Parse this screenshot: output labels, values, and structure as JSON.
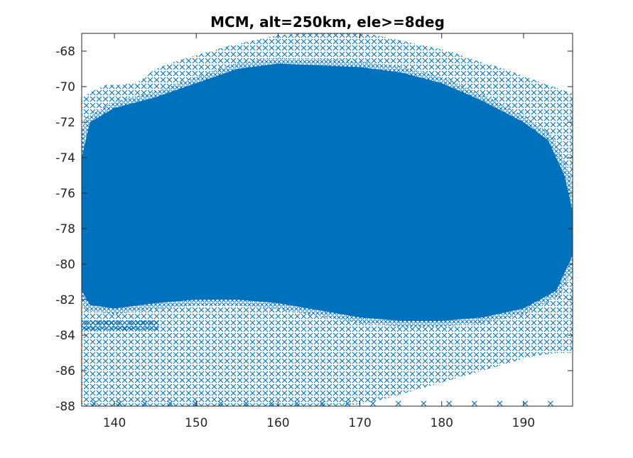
{
  "chart_data": {
    "type": "scatter",
    "title": "MCM, alt=250km, ele>=8deg",
    "xlabel": "",
    "ylabel": "",
    "xlim": [
      136,
      196
    ],
    "ylim": [
      -88,
      -67
    ],
    "xticks": [
      140,
      150,
      160,
      170,
      180,
      190
    ],
    "xtick_labels": [
      "140",
      "150",
      "160",
      "170",
      "180",
      "190"
    ],
    "yticks": [
      -88,
      -86,
      -84,
      -82,
      -80,
      -78,
      -76,
      -74,
      -72,
      -70,
      -68
    ],
    "ytick_labels": [
      "-88",
      "-86",
      "-84",
      "-82",
      "-80",
      "-78",
      "-76",
      "-74",
      "-72",
      "-70",
      "-68"
    ],
    "marker": "x",
    "grid": false,
    "legend": "none",
    "series_color": "#0072bd",
    "coverage_polygon": [
      [
        136,
        -70.6
      ],
      [
        137.5,
        -70.2
      ],
      [
        139,
        -69.9
      ],
      [
        141,
        -69.9
      ],
      [
        143,
        -69.7
      ],
      [
        145,
        -69.0
      ],
      [
        148,
        -68.5
      ],
      [
        151,
        -68.1
      ],
      [
        154,
        -67.7
      ],
      [
        157,
        -67.4
      ],
      [
        160,
        -67.1
      ],
      [
        163,
        -67.0
      ],
      [
        166,
        -67.0
      ],
      [
        169,
        -67.0
      ],
      [
        172,
        -67.1
      ],
      [
        175,
        -67.4
      ],
      [
        178,
        -67.7
      ],
      [
        181,
        -68.0
      ],
      [
        184,
        -68.5
      ],
      [
        187,
        -68.9
      ],
      [
        190,
        -69.4
      ],
      [
        193,
        -69.9
      ],
      [
        196,
        -70.4
      ],
      [
        196,
        -85.0
      ],
      [
        194,
        -85.0
      ],
      [
        191,
        -85.2
      ],
      [
        188,
        -85.6
      ],
      [
        185,
        -86.0
      ],
      [
        182,
        -86.4
      ],
      [
        179,
        -86.8
      ],
      [
        176,
        -87.2
      ],
      [
        173,
        -87.6
      ],
      [
        170,
        -87.9
      ],
      [
        166,
        -88.0
      ],
      [
        160,
        -88.0
      ],
      [
        150,
        -88.0
      ],
      [
        142,
        -88.0
      ],
      [
        136,
        -88.0
      ]
    ],
    "dense_core_polygon": [
      [
        136,
        -74.0
      ],
      [
        137,
        -72.0
      ],
      [
        140,
        -71.2
      ],
      [
        145,
        -70.6
      ],
      [
        150,
        -69.8
      ],
      [
        155,
        -69.0
      ],
      [
        160,
        -68.7
      ],
      [
        165,
        -68.8
      ],
      [
        170,
        -68.9
      ],
      [
        175,
        -69.2
      ],
      [
        180,
        -69.8
      ],
      [
        185,
        -70.8
      ],
      [
        190,
        -72.0
      ],
      [
        193,
        -73.0
      ],
      [
        195,
        -75.0
      ],
      [
        196,
        -77.0
      ],
      [
        196,
        -79.5
      ],
      [
        194,
        -81.5
      ],
      [
        190,
        -82.5
      ],
      [
        185,
        -83.0
      ],
      [
        180,
        -83.2
      ],
      [
        175,
        -83.2
      ],
      [
        170,
        -83.0
      ],
      [
        165,
        -82.6
      ],
      [
        160,
        -82.2
      ],
      [
        155,
        -82.0
      ],
      [
        150,
        -82.0
      ],
      [
        145,
        -82.2
      ],
      [
        140,
        -82.5
      ],
      [
        137,
        -82.3
      ],
      [
        136,
        -81.5
      ]
    ],
    "streak_rows_y": [
      -83.3,
      -83.6
    ]
  }
}
